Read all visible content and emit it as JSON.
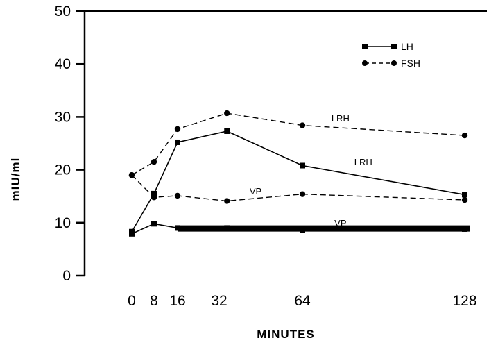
{
  "chart_data": {
    "type": "line",
    "title": "",
    "xlabel": "MINUTES",
    "ylabel": "mIU/ml",
    "xlim": [
      0,
      128
    ],
    "ylim": [
      0,
      50
    ],
    "x_ticks": [
      0,
      8,
      16,
      32,
      64,
      128
    ],
    "x_tick_labels": [
      "0",
      "8",
      "16",
      "32",
      "64",
      "128"
    ],
    "y_ticks": [
      0,
      10,
      20,
      30,
      40,
      50
    ],
    "y_tick_labels": [
      "0",
      "10",
      "20",
      "30",
      "40",
      "50"
    ],
    "grid": false,
    "legend_position": "top-right",
    "legend": [
      {
        "label": "LH",
        "style": "solid",
        "marker": "square"
      },
      {
        "label": "FSH",
        "style": "dashed",
        "marker": "circle"
      }
    ],
    "series": [
      {
        "hormone": "LH",
        "treatment": "LRH",
        "style": "solid",
        "marker": "square",
        "x": [
          0,
          8,
          16,
          35,
          64,
          128
        ],
        "y": [
          8.3,
          15.5,
          25.2,
          27.3,
          20.8,
          15.3
        ]
      },
      {
        "hormone": "FSH",
        "treatment": "LRH",
        "style": "dashed",
        "marker": "circle",
        "x": [
          0,
          8,
          16,
          35,
          64,
          128
        ],
        "y": [
          19.0,
          21.5,
          27.7,
          30.7,
          28.4,
          26.5
        ]
      },
      {
        "hormone": "FSH",
        "treatment": "VP",
        "style": "dashed",
        "marker": "circle",
        "x": [
          0,
          8,
          16,
          35,
          64,
          128
        ],
        "y": [
          19.0,
          14.8,
          15.1,
          14.1,
          15.4,
          14.3
        ]
      },
      {
        "hormone": "LH",
        "treatment": "VP",
        "style": "solid",
        "marker": "square",
        "x": [
          0,
          8,
          16,
          35,
          64,
          128
        ],
        "y": [
          7.9,
          9.8,
          9.0,
          9.0,
          8.6,
          8.8
        ]
      }
    ],
    "annotations": [
      {
        "text": "LRH",
        "x": 79,
        "y": 29.8
      },
      {
        "text": "LRH",
        "x": 88,
        "y": 21.5
      },
      {
        "text": "VP",
        "x": 46,
        "y": 16.0
      },
      {
        "text": "VP",
        "x": 79,
        "y": 10.0
      }
    ]
  }
}
